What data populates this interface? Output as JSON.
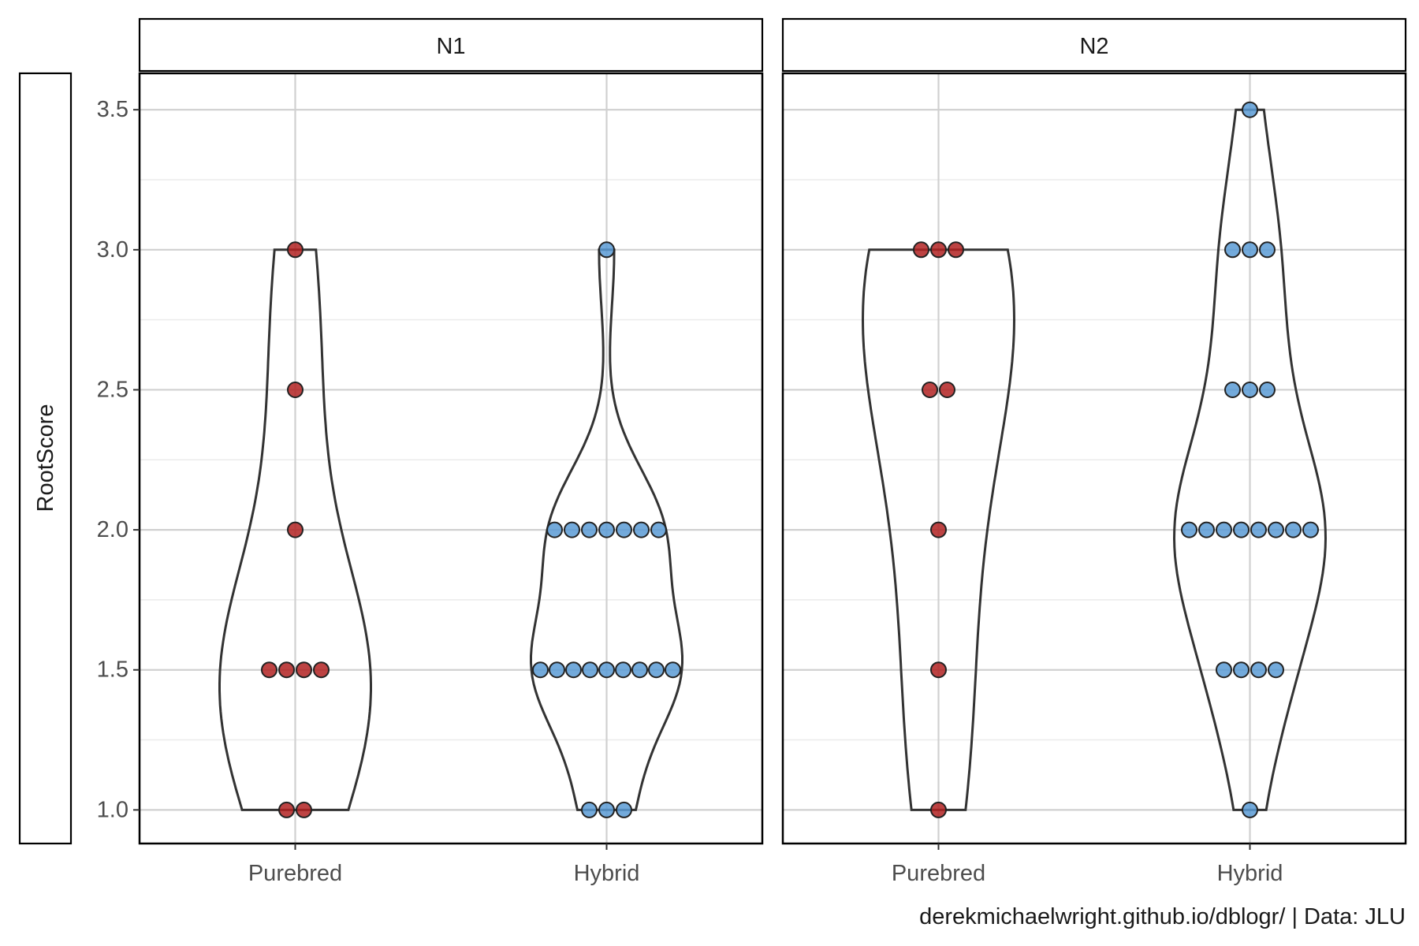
{
  "chart_data": {
    "type": "violin",
    "ylabel": "RootScore",
    "xlabel": "",
    "ylim": [
      0.88,
      3.63
    ],
    "y_ticks": [
      "1.0",
      "1.5",
      "2.0",
      "2.5",
      "3.0",
      "3.5"
    ],
    "y_tick_values": [
      1.0,
      1.5,
      2.0,
      2.5,
      3.0,
      3.5
    ],
    "categories": [
      "Purebred",
      "Hybrid"
    ],
    "caption": "derekmichaelwright.github.io/dblogr/ | Data: JLU",
    "grid": true,
    "colors": {
      "Purebred": "#b22222",
      "Hybrid": "#5b9bd5",
      "violin_outline": "#333333"
    },
    "panels": [
      {
        "name": "N1",
        "groups": [
          {
            "category": "Purebred",
            "points": [
              3.0,
              2.5,
              2.0,
              1.5,
              1.5,
              1.5,
              1.5,
              1.0,
              1.0
            ]
          },
          {
            "category": "Hybrid",
            "points": [
              3.0,
              2.0,
              2.0,
              2.0,
              2.0,
              2.0,
              2.0,
              2.0,
              1.5,
              1.5,
              1.5,
              1.5,
              1.5,
              1.5,
              1.5,
              1.5,
              1.5,
              1.0,
              1.0,
              1.0
            ]
          }
        ]
      },
      {
        "name": "N2",
        "groups": [
          {
            "category": "Purebred",
            "points": [
              3.0,
              3.0,
              3.0,
              2.5,
              2.5,
              2.0,
              1.5,
              1.0
            ]
          },
          {
            "category": "Hybrid",
            "points": [
              3.5,
              3.0,
              3.0,
              3.0,
              2.5,
              2.5,
              2.5,
              2.0,
              2.0,
              2.0,
              2.0,
              2.0,
              2.0,
              2.0,
              2.0,
              1.5,
              1.5,
              1.5,
              1.5,
              1.0
            ]
          }
        ]
      }
    ]
  }
}
